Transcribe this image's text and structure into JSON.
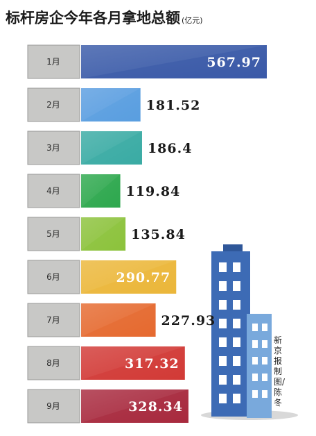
{
  "title": "标杆房企今年各月拿地总额",
  "unit": "(亿元)",
  "credit": "新京报制图/陈冬",
  "chart_data": {
    "type": "bar",
    "orientation": "horizontal",
    "title": "标杆房企今年各月拿地总额",
    "unit": "(亿元)",
    "categories": [
      "1月",
      "2月",
      "3月",
      "4月",
      "5月",
      "6月",
      "7月",
      "8月",
      "9月"
    ],
    "values": [
      567.97,
      181.52,
      186.4,
      119.84,
      135.84,
      290.77,
      227.93,
      317.32,
      328.34
    ],
    "value_labels": [
      "567.97",
      "181.52",
      "186.4",
      "119.84",
      "135.84",
      "290.77",
      "227.93",
      "317.32",
      "328.34"
    ],
    "colors": [
      "#3a5aa8",
      "#5a9ee0",
      "#3aaba4",
      "#2ea84e",
      "#8cc23c",
      "#ebb73a",
      "#e56a30",
      "#d23a36",
      "#a82a3e"
    ],
    "label_inside": [
      true,
      false,
      false,
      false,
      false,
      true,
      false,
      true,
      true
    ]
  }
}
